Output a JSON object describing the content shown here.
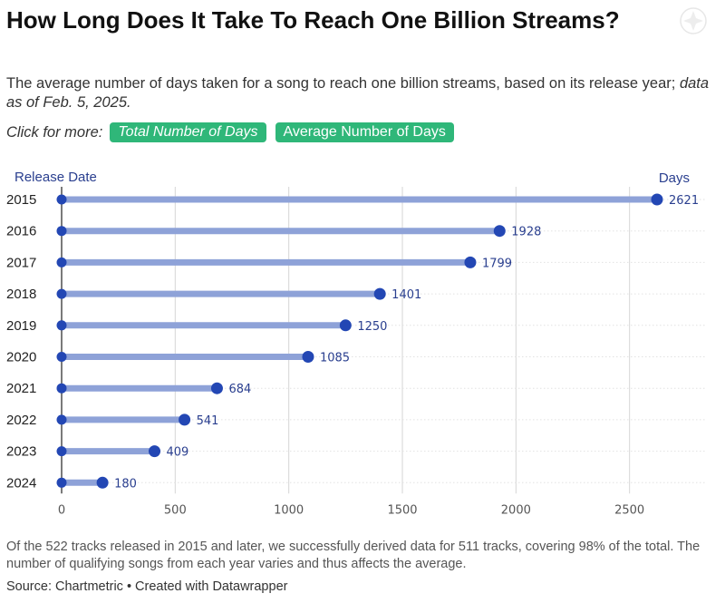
{
  "title": "How Long Does It Take To Reach One Billion Streams?",
  "subtitle": "The average number of days taken for a song to reach one billion streams, based on its release year;",
  "subtitle_asof": "data as of Feb. 5, 2025.",
  "links": {
    "label": "Click for more:",
    "total": "Total Number of Days",
    "average": "Average Number of Days"
  },
  "colors": {
    "bar": "#8ea2d8",
    "dot": "#2347b4",
    "label": "#2a3f8f",
    "pill": "#2fb779",
    "grid": "#d6d6d6",
    "axis": "#333333"
  },
  "chart_data": {
    "type": "bar",
    "orientation": "horizontal",
    "style": "lollipop",
    "categories": [
      "2015",
      "2016",
      "2017",
      "2018",
      "2019",
      "2020",
      "2021",
      "2022",
      "2023",
      "2024"
    ],
    "values": [
      2621,
      1928,
      1799,
      1401,
      1250,
      1085,
      684,
      541,
      409,
      180
    ],
    "ylabel": "Release Date",
    "xlabel": "Days",
    "xlim": [
      0,
      2750
    ],
    "xticks": [
      0,
      500,
      1000,
      1500,
      2000,
      2500
    ],
    "grid": true
  },
  "footnote": "Of the 522 tracks released in 2015 and later, we successfully derived data for 511 tracks, covering 98% of the total. The number of qualifying songs from each year varies and thus affects the average.",
  "source": {
    "text": "Source: Chartmetric",
    "credit": "Created with Datawrapper"
  }
}
